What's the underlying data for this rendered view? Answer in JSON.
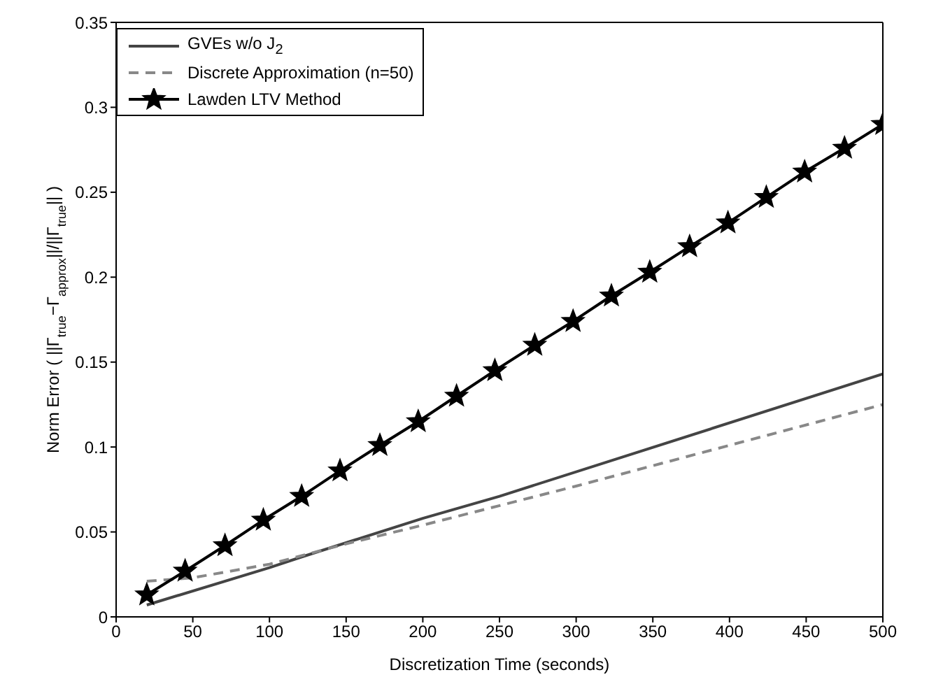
{
  "chart_data": {
    "type": "line",
    "xlabel": "Discretization Time (seconds)",
    "ylabel": "Norm Error ( ||Γ$_{true}$−Γ$_{approx}$||/||Γ$_{true}$|| )",
    "xlim": [
      0,
      500
    ],
    "xticks": [
      0,
      50,
      100,
      150,
      200,
      250,
      300,
      350,
      400,
      450,
      500
    ],
    "ylim": [
      0,
      0.35
    ],
    "yticks": [
      0,
      0.05,
      0.1,
      0.15,
      0.2,
      0.25,
      0.3,
      0.35
    ],
    "legend": "top left",
    "series": [
      {
        "name": "GVEs w/o J$_{2}$",
        "color": "#444444",
        "line_style": "solid",
        "marker": "none",
        "x": [
          20,
          100,
          120,
          200,
          250,
          500
        ],
        "values": [
          0.007,
          0.029,
          0.035,
          0.058,
          0.071,
          0.143
        ]
      },
      {
        "name": "Discrete Approximation (n=50)",
        "color": "#888888",
        "line_style": "dashed",
        "marker": "none",
        "x": [
          20,
          50,
          100,
          150,
          200,
          300,
          400,
          500
        ],
        "values": [
          0.021,
          0.023,
          0.031,
          0.043,
          0.054,
          0.077,
          0.101,
          0.125
        ]
      },
      {
        "name": "Lawden LTV Method",
        "color": "#000000",
        "line_style": "solid",
        "marker": "star",
        "x": [
          20,
          45,
          71,
          96,
          121,
          146,
          172,
          197,
          222,
          247,
          273,
          298,
          323,
          348,
          374,
          399,
          424,
          449,
          475,
          500
        ],
        "values": [
          0.013,
          0.027,
          0.042,
          0.057,
          0.071,
          0.086,
          0.101,
          0.115,
          0.13,
          0.145,
          0.16,
          0.174,
          0.189,
          0.203,
          0.218,
          0.232,
          0.247,
          0.262,
          0.276,
          0.29
        ]
      }
    ]
  }
}
